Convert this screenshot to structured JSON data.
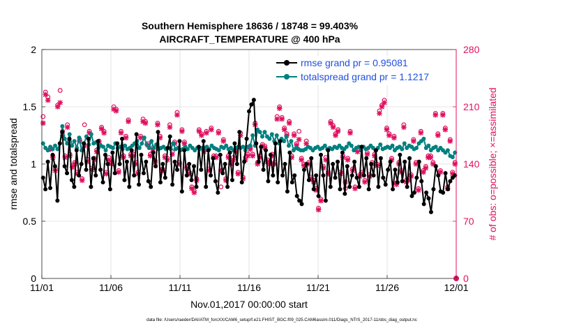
{
  "chart_data": {
    "type": "line",
    "title_line1": "Southern Hemisphere 18636 / 18748 = 99.403%",
    "title_line2": "AIRCRAFT_TEMPERATURE @ 400 hPa",
    "xlabel": "Nov.01,2017 00:00:00 start",
    "ylabel_left": "rmse and totalspread",
    "ylabel_right": "# of obs: o=possible; ×=assimilated",
    "footnote": "data file: /Users/raeder/DAI/ATM_forcXX/CAM6_setup/f.e21.FHIST_BGC.f09_025.CAM6assim.011/Diags_NTrS_2017-11/obs_diag_output.nc",
    "x_range": [
      0,
      30
    ],
    "xticks": [
      {
        "value": 0,
        "label": "11/01"
      },
      {
        "value": 5,
        "label": "11/06"
      },
      {
        "value": 10,
        "label": "11/11"
      },
      {
        "value": 15,
        "label": "11/16"
      },
      {
        "value": 20,
        "label": "11/21"
      },
      {
        "value": 25,
        "label": "11/26"
      },
      {
        "value": 30,
        "label": "12/01"
      }
    ],
    "ylim_left": [
      0,
      2
    ],
    "yticks_left": [
      {
        "value": 0,
        "label": "0"
      },
      {
        "value": 0.5,
        "label": "0.5"
      },
      {
        "value": 1,
        "label": "1"
      },
      {
        "value": 1.5,
        "label": "1.5"
      },
      {
        "value": 2,
        "label": "2"
      }
    ],
    "ylim_right": [
      0,
      280
    ],
    "yticks_right": [
      {
        "value": 0,
        "label": "0"
      },
      {
        "value": 70,
        "label": "70"
      },
      {
        "value": 140,
        "label": "140"
      },
      {
        "value": 210,
        "label": "210"
      },
      {
        "value": 280,
        "label": "280"
      }
    ],
    "grid": true,
    "legend_position": "top-right",
    "series": [
      {
        "name": "rmse grand pr = 0.95081",
        "color": "#000000",
        "values": [
          0.88,
          0.78,
          1.02,
          0.79,
          1.08,
          0.98,
          0.68,
          1.18,
          1.28,
          0.98,
          0.92,
          1.22,
          0.86,
          0.8,
          1.12,
          0.9,
          1.0,
          1.18,
          0.95,
          1.22,
          0.8,
          1.05,
          0.9,
          1.2,
          0.95,
          0.84,
          1.08,
          1.0,
          0.78,
          1.1,
          0.92,
          1.18,
          1.0,
          1.22,
          0.86,
          1.02,
          0.8,
          1.12,
          0.9,
          1.26,
          0.82,
          1.08,
          0.92,
          1.02,
          0.85,
          0.8,
          1.1,
          0.98,
          1.28,
          0.84,
          1.0,
          0.88,
          1.14,
          1.24,
          0.82,
          1.02,
          0.95,
          1.2,
          0.76,
          1.12,
          0.9,
          1.0,
          0.86,
          0.98,
          0.8,
          1.15,
          0.95,
          1.2,
          0.8,
          1.12,
          0.9,
          1.05,
          0.85,
          0.75,
          1.08,
          0.92,
          1.0,
          0.8,
          1.1,
          0.86,
          1.18,
          1.0,
          1.28,
          0.84,
          1.02,
          1.22,
          1.46,
          1.52,
          1.56,
          1.18,
          1.02,
          1.15,
          0.95,
          1.12,
          0.85,
          1.08,
          0.9,
          1.18,
          0.84,
          1.2,
          0.9,
          1.0,
          0.76,
          1.1,
          0.84,
          0.9,
          0.72,
          0.68,
          0.65,
          0.95,
          1.0,
          0.86,
          1.05,
          0.78,
          0.9,
          0.72,
          1.08,
          0.9,
          0.68,
          1.12,
          0.8,
          1.0,
          0.88,
          1.02,
          0.78,
          1.1,
          0.74,
          0.98,
          0.8,
          0.9,
          1.02,
          0.88,
          0.8,
          1.15,
          0.9,
          1.05,
          0.78,
          1.0,
          0.9,
          1.12,
          0.8,
          1.05,
          0.88,
          0.82,
          0.95,
          1.02,
          0.78,
          0.95,
          0.84,
          1.08,
          0.85,
          1.02,
          0.8,
          1.05,
          0.72,
          0.75,
          0.88,
          1.02,
          0.85,
          0.65,
          0.75,
          0.7,
          0.58,
          0.78,
          0.98,
          0.9,
          0.76,
          0.75,
          0.92,
          0.78,
          0.85,
          0.88,
          0.9
        ]
      },
      {
        "name": "totalspread grand pr = 1.1217",
        "color": "#008080",
        "values": [
          1.18,
          1.14,
          1.12,
          1.15,
          1.13,
          1.16,
          1.13,
          1.18,
          1.33,
          1.22,
          1.18,
          1.26,
          1.16,
          1.2,
          1.14,
          1.23,
          1.12,
          1.18,
          1.24,
          1.17,
          1.26,
          1.18,
          1.19,
          1.14,
          1.16,
          1.15,
          1.12,
          1.16,
          1.15,
          1.14,
          1.18,
          1.14,
          1.15,
          1.13,
          1.16,
          1.13,
          1.14,
          1.16,
          1.18,
          1.2,
          1.14,
          1.18,
          1.23,
          1.17,
          1.14,
          1.2,
          1.14,
          1.17,
          1.13,
          1.14,
          1.15,
          1.13,
          1.14,
          1.13,
          1.18,
          1.13,
          1.14,
          1.12,
          1.13,
          1.15,
          1.13,
          1.16,
          1.14,
          1.12,
          1.14,
          1.13,
          1.14,
          1.14,
          1.15,
          1.13,
          1.16,
          1.14,
          1.13,
          1.12,
          1.15,
          1.14,
          1.16,
          1.13,
          1.14,
          1.12,
          1.14,
          1.15,
          1.14,
          1.15,
          1.12,
          1.15,
          1.16,
          1.25,
          1.16,
          1.3,
          1.28,
          1.24,
          1.28,
          1.24,
          1.22,
          1.26,
          1.2,
          1.25,
          1.18,
          1.22,
          1.2,
          1.24,
          1.16,
          1.2,
          1.12,
          1.14,
          1.13,
          1.12,
          1.12,
          1.13,
          1.15,
          1.14,
          1.12,
          1.14,
          1.15,
          1.13,
          1.14,
          1.16,
          1.13,
          1.14,
          1.13,
          1.15,
          1.14,
          1.16,
          1.14,
          1.13,
          1.15,
          1.18,
          1.16,
          1.12,
          1.14,
          1.15,
          1.12,
          1.15,
          1.13,
          1.14,
          1.16,
          1.14,
          1.12,
          1.14,
          1.17,
          1.13,
          1.14,
          1.15,
          1.14,
          1.16,
          1.12,
          1.14,
          1.15,
          1.13,
          1.18,
          1.14,
          1.16,
          1.15,
          1.13,
          1.14,
          1.18,
          1.2,
          1.22,
          1.14,
          1.16,
          1.12,
          1.14,
          1.15,
          1.12,
          1.14,
          1.12,
          1.1,
          1.12,
          1.07,
          1.06,
          1.1
        ]
      }
    ],
    "obs_assimilated": {
      "name": "assimilated",
      "color": "#e0115f",
      "values": [
        190,
        225,
        218,
        158,
        148,
        132,
        210,
        215,
        175,
        148,
        185,
        150,
        136,
        140,
        128,
        168,
        120,
        162,
        143,
        178,
        133,
        145,
        155,
        165,
        183,
        178,
        128,
        145,
        140,
        207,
        205,
        130,
        178,
        148,
        172,
        192,
        150,
        150,
        140,
        128,
        172,
        192,
        190,
        163,
        150,
        158,
        142,
        188,
        172,
        132,
        148,
        145,
        185,
        152,
        165,
        200,
        140,
        180,
        165,
        135,
        128,
        110,
        105,
        120,
        180,
        175,
        155,
        178,
        132,
        182,
        148,
        148,
        178,
        132,
        168,
        120,
        148,
        140,
        145,
        155,
        128,
        175,
        122,
        145,
        150,
        158,
        150,
        188,
        140,
        148,
        162,
        160,
        143,
        140,
        150,
        140,
        195,
        208,
        195,
        182,
        175,
        190,
        148,
        175,
        163,
        170,
        145,
        138,
        165,
        140,
        122,
        118,
        108,
        84,
        95,
        135,
        145,
        128,
        190,
        185,
        175,
        180,
        128,
        148,
        118,
        145,
        178,
        132,
        110,
        155,
        125,
        128,
        118,
        152,
        125,
        140,
        150,
        138,
        202,
        210,
        215,
        182,
        175,
        145,
        172,
        115,
        140,
        130,
        185,
        118,
        120,
        125,
        168,
        140,
        108,
        178,
        130,
        135,
        148,
        148,
        140,
        200,
        175,
        130,
        200,
        182,
        110,
        168,
        128,
        140
      ]
    },
    "obs_possible": {
      "name": "possible",
      "color": "#e0115f",
      "values": [
        198,
        228,
        222,
        160,
        150,
        134,
        212,
        230,
        180,
        150,
        188,
        152,
        138,
        142,
        130,
        170,
        122,
        188,
        146,
        180,
        135,
        147,
        157,
        168,
        185,
        180,
        130,
        148,
        142,
        210,
        207,
        132,
        180,
        150,
        174,
        194,
        152,
        152,
        142,
        130,
        174,
        195,
        192,
        165,
        152,
        160,
        144,
        190,
        174,
        134,
        150,
        147,
        188,
        155,
        167,
        203,
        142,
        182,
        167,
        137,
        130,
        112,
        107,
        122,
        182,
        177,
        157,
        180,
        134,
        184,
        150,
        150,
        180,
        112,
        170,
        122,
        150,
        142,
        148,
        157,
        130,
        178,
        124,
        148,
        152,
        160,
        152,
        190,
        142,
        150,
        164,
        162,
        145,
        142,
        152,
        142,
        198,
        210,
        197,
        184,
        177,
        192,
        150,
        177,
        165,
        180,
        147,
        140,
        168,
        142,
        124,
        120,
        110,
        86,
        97,
        137,
        148,
        130,
        192,
        187,
        177,
        182,
        130,
        150,
        110,
        147,
        180,
        134,
        112,
        157,
        127,
        130,
        120,
        154,
        127,
        142,
        152,
        140,
        205,
        212,
        218,
        184,
        177,
        147,
        174,
        117,
        142,
        132,
        188,
        120,
        122,
        127,
        170,
        142,
        110,
        180,
        132,
        137,
        150,
        150,
        142,
        202,
        177,
        132,
        202,
        184,
        112,
        170,
        130,
        142
      ]
    }
  }
}
